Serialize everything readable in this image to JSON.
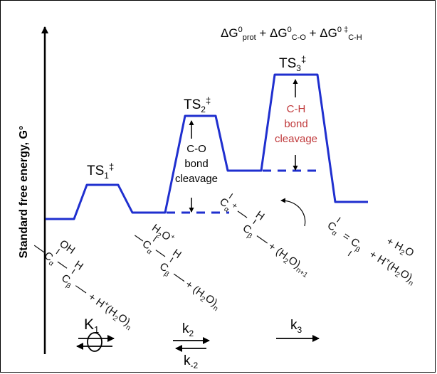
{
  "ylabel": "Standard free energy, G°",
  "equation": {
    "d1": "ΔG",
    "s1": "0",
    "b1": "prot",
    "p1": " + ΔG",
    "s2": "0",
    "b2": "C-O",
    "p2": " + ΔG",
    "s3": "0 ‡",
    "b3": "C-H"
  },
  "ts1": {
    "base": "TS",
    "sub": "1",
    "sup": "‡"
  },
  "ts2": {
    "base": "TS",
    "sub": "2",
    "sup": "‡"
  },
  "ts3": {
    "base": "TS",
    "sub": "3",
    "sup": "‡"
  },
  "co_barrier": [
    "C-O",
    "bond",
    "cleavage"
  ],
  "ch_barrier": [
    "C-H",
    "bond",
    "cleavage"
  ],
  "colors": {
    "profile": "#1f2fcf",
    "ch_text": "#c0393b",
    "ink": "#000000"
  },
  "species": {
    "s1": {
      "oh": "OH",
      "ca": "C",
      "ca_sub": "α",
      "cb": "C",
      "cb_sub": "β",
      "h": "H",
      "h3o": "+ H",
      "h3o_sup": "+",
      "h3o_rest": "(H",
      "h3o_sub": "2",
      "h3o_end": "O)",
      "h3o_n": "n"
    },
    "s2": {
      "h2o": "H",
      "h2o_sub": "2",
      "h2o_o": "O",
      "h2o_plus": "+",
      "ca": "C",
      "ca_sub": "α",
      "cb": "C",
      "cb_sub": "β",
      "h": "H",
      "water": "+ (H",
      "water_sub": "2",
      "water_end": "O)",
      "water_n": "n"
    },
    "s3": {
      "ca": "C",
      "ca_sub": "α",
      "plus": "+",
      "cb": "C",
      "cb_sub": "β",
      "h": "H",
      "water": "+ (H",
      "water_sub": "2",
      "water_end": "O)",
      "water_n": "n+1"
    },
    "s4": {
      "ca": "C",
      "ca_sub": "α",
      "eq": "=",
      "cb": "C",
      "cb_sub": "β",
      "h2o": "+ H",
      "h2o_sub": "2",
      "h2o_o": "O",
      "h3o": "+ H",
      "h3o_sup": "+",
      "h3o_rest": "(H",
      "h3o_sub": "2",
      "h3o_end": "O)",
      "h3o_n": "n"
    }
  },
  "rates": {
    "k1": {
      "base": "K",
      "sub": "1"
    },
    "k2": {
      "base": "k",
      "sub": "2"
    },
    "km2": {
      "base": "k",
      "sub": "-2"
    },
    "k3": {
      "base": "k",
      "sub": "3"
    }
  }
}
